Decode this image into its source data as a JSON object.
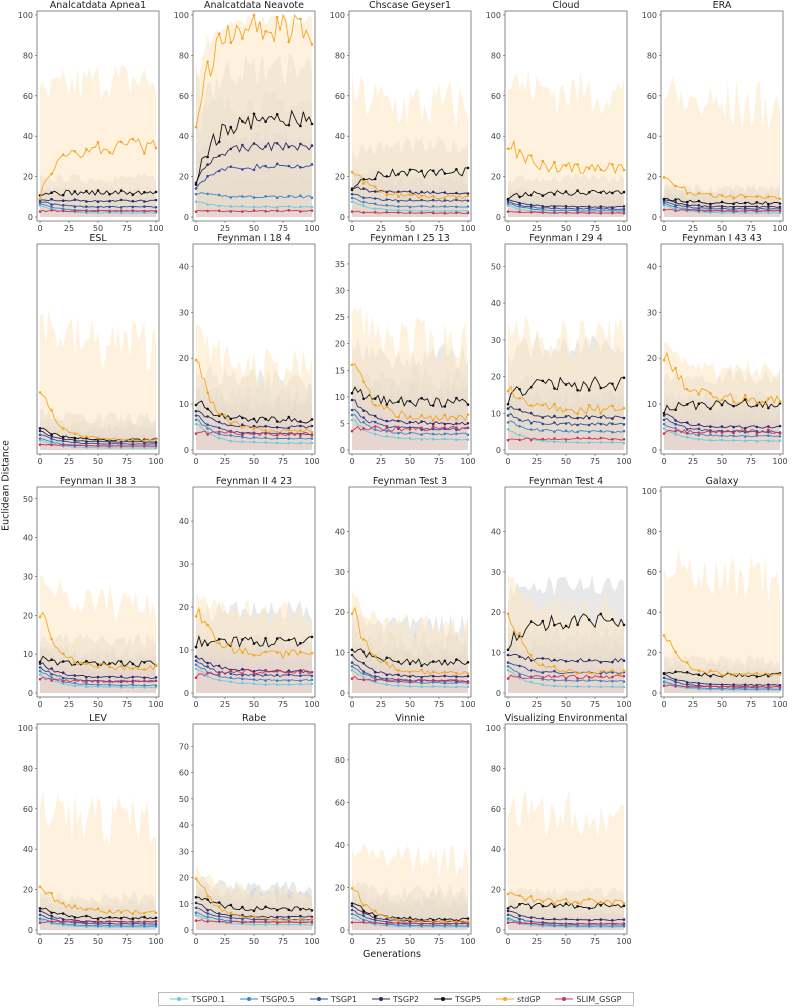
{
  "chart_data": {
    "type": "line",
    "ylabel": "Euclidean Distance",
    "xlabel": "Generations",
    "x_ticks": [
      0,
      25,
      50,
      75,
      100
    ],
    "series": [
      {
        "name": "TSGP0.1",
        "color": "#6fc9d8",
        "marker": "circle"
      },
      {
        "name": "TSGP0.5",
        "color": "#3d86c6",
        "marker": "square"
      },
      {
        "name": "TSGP1",
        "color": "#2b4f9a",
        "marker": "triangle"
      },
      {
        "name": "TSGP2",
        "color": "#2e2b66",
        "marker": "diamond"
      },
      {
        "name": "TSGP5",
        "color": "#111111",
        "marker": "star"
      },
      {
        "name": "stdGP",
        "color": "#f5a623",
        "marker": "circle"
      },
      {
        "name": "SLIM_GSGP",
        "color": "#c8385a",
        "marker": "circle"
      }
    ],
    "panels": [
      {
        "title": "Analcatdata Apnea1",
        "ylim": [
          0,
          100
        ],
        "y_ticks": [
          0,
          20,
          40,
          60,
          80,
          100
        ],
        "end": [
          2,
          3,
          5,
          8,
          12,
          35,
          3
        ],
        "start": [
          6,
          7,
          8,
          9,
          12,
          10,
          3
        ],
        "shade_max": 100
      },
      {
        "title": "Analcatdata Neavote",
        "ylim": [
          0,
          100
        ],
        "y_ticks": [
          0,
          20,
          40,
          60,
          80,
          100
        ],
        "end": [
          5,
          10,
          25,
          35,
          48,
          95,
          3
        ],
        "start": [
          8,
          12,
          15,
          18,
          18,
          50,
          3
        ],
        "shade_max": 100
      },
      {
        "title": "Chscase Geyser1",
        "ylim": [
          0,
          100
        ],
        "y_ticks": [
          0,
          20,
          40,
          60,
          80,
          100
        ],
        "end": [
          3,
          5,
          8,
          12,
          22,
          10,
          2
        ],
        "start": [
          8,
          10,
          12,
          15,
          15,
          25,
          3
        ],
        "shade_max": 100
      },
      {
        "title": "Cloud",
        "ylim": [
          0,
          100
        ],
        "y_ticks": [
          0,
          20,
          40,
          60,
          80,
          100
        ],
        "end": [
          2,
          3,
          4,
          5,
          12,
          24,
          2
        ],
        "start": [
          6,
          7,
          8,
          9,
          10,
          38,
          3
        ],
        "shade_max": 100
      },
      {
        "title": "ERA",
        "ylim": [
          0,
          100
        ],
        "y_ticks": [
          0,
          20,
          40,
          60,
          80,
          100
        ],
        "end": [
          2,
          3,
          4,
          5,
          7,
          10,
          3
        ],
        "start": [
          6,
          7,
          8,
          9,
          10,
          22,
          4
        ],
        "shade_max": 100
      },
      {
        "title": "ESL",
        "ylim": [
          0,
          100
        ],
        "y_ticks": [],
        "end": [
          1,
          2,
          3,
          4,
          5,
          5,
          2
        ],
        "start": [
          5,
          6,
          8,
          10,
          12,
          32,
          3
        ],
        "shade_max": 100
      },
      {
        "title": "Feynman I 18 4",
        "ylim": [
          0,
          44
        ],
        "y_ticks": [
          0,
          10,
          20,
          30,
          40
        ],
        "end": [
          1.5,
          2.5,
          3.5,
          5,
          6.5,
          4,
          3.5
        ],
        "start": [
          6,
          7,
          8,
          9,
          11,
          22,
          4
        ],
        "shade_max": 32
      },
      {
        "title": "Feynman I 25 13",
        "ylim": [
          0,
          38
        ],
        "y_ticks": [
          0,
          5,
          10,
          15,
          20,
          25,
          30,
          35
        ],
        "end": [
          2,
          3,
          4,
          5,
          9,
          6,
          4
        ],
        "start": [
          6,
          7,
          8,
          10,
          12,
          18,
          4
        ],
        "shade_max": 35
      },
      {
        "title": "Feynman I 29 4",
        "ylim": [
          0,
          55
        ],
        "y_ticks": [
          0,
          10,
          20,
          30,
          40,
          50
        ],
        "end": [
          2,
          5,
          7,
          9,
          18,
          11,
          3
        ],
        "start": [
          6,
          8,
          10,
          12,
          14,
          18,
          3
        ],
        "shade_max": 50
      },
      {
        "title": "Feynman I 43 43",
        "ylim": [
          0,
          44
        ],
        "y_ticks": [
          0,
          10,
          20,
          30,
          40
        ],
        "end": [
          2,
          3,
          4,
          5,
          10,
          11,
          4
        ],
        "start": [
          5,
          6,
          7,
          8,
          9,
          22,
          4
        ],
        "shade_max": 24
      },
      {
        "title": "Feynman II 38 3",
        "ylim": [
          0,
          52
        ],
        "y_ticks": [
          0,
          10,
          20,
          30,
          40,
          50
        ],
        "end": [
          1.5,
          2,
          3,
          4,
          7.5,
          6.5,
          3
        ],
        "start": [
          5,
          6,
          7,
          8,
          9,
          22,
          4
        ],
        "shade_max": 40
      },
      {
        "title": "Feynman II 4 23",
        "ylim": [
          0,
          47
        ],
        "y_ticks": [
          0,
          10,
          20,
          30,
          40
        ],
        "end": [
          2,
          3,
          4,
          5,
          12,
          9,
          5
        ],
        "start": [
          6,
          7,
          8,
          9,
          12,
          20,
          4
        ],
        "shade_max": 28
      },
      {
        "title": "Feynman Test 3",
        "ylim": [
          0,
          50
        ],
        "y_ticks": [
          0,
          10,
          20,
          30,
          40
        ],
        "end": [
          1.5,
          2.5,
          3,
          4,
          7.5,
          5,
          3
        ],
        "start": [
          6,
          7,
          8,
          10,
          12,
          22,
          4
        ],
        "shade_max": 28
      },
      {
        "title": "Feynman Test 4",
        "ylim": [
          0,
          50
        ],
        "y_ticks": [
          0,
          10,
          20,
          30,
          40
        ],
        "end": [
          1.5,
          3,
          5,
          8,
          18,
          5,
          4
        ],
        "start": [
          6,
          7,
          8,
          10,
          12,
          22,
          4
        ],
        "shade_max": 35
      },
      {
        "title": "Galaxy",
        "ylim": [
          0,
          100
        ],
        "y_ticks": [
          0,
          20,
          40,
          60,
          80,
          100
        ],
        "end": [
          1.5,
          2,
          3,
          4,
          9,
          9,
          3
        ],
        "start": [
          5,
          6,
          8,
          10,
          11,
          32,
          4
        ],
        "shade_max": 100
      },
      {
        "title": "LEV",
        "ylim": [
          0,
          100
        ],
        "y_ticks": [
          0,
          20,
          40,
          60,
          80,
          100
        ],
        "end": [
          1.5,
          2,
          3,
          4,
          6,
          9,
          4
        ],
        "start": [
          5,
          6,
          8,
          10,
          12,
          24,
          4
        ],
        "shade_max": 100
      },
      {
        "title": "Rabe",
        "ylim": [
          0,
          77
        ],
        "y_ticks": [
          0,
          10,
          20,
          30,
          40,
          50,
          60,
          70
        ],
        "end": [
          2,
          3,
          4,
          5,
          8,
          4,
          3
        ],
        "start": [
          6,
          7,
          9,
          11,
          14,
          22,
          4
        ],
        "shade_max": 25
      },
      {
        "title": "Vinnie",
        "ylim": [
          0,
          95
        ],
        "y_ticks": [
          0,
          20,
          40,
          60,
          80
        ],
        "end": [
          1.5,
          2,
          3,
          4,
          5,
          4,
          3
        ],
        "start": [
          6,
          8,
          10,
          12,
          14,
          22,
          4
        ],
        "shade_max": 60
      },
      {
        "title": "Visualizing Environmental",
        "ylim": [
          0,
          100
        ],
        "y_ticks": [
          0,
          20,
          40,
          60,
          80,
          100
        ],
        "end": [
          1.5,
          2,
          3,
          5,
          12,
          14,
          3
        ],
        "start": [
          5,
          6,
          8,
          10,
          12,
          20,
          4
        ],
        "shade_max": 100
      }
    ]
  }
}
